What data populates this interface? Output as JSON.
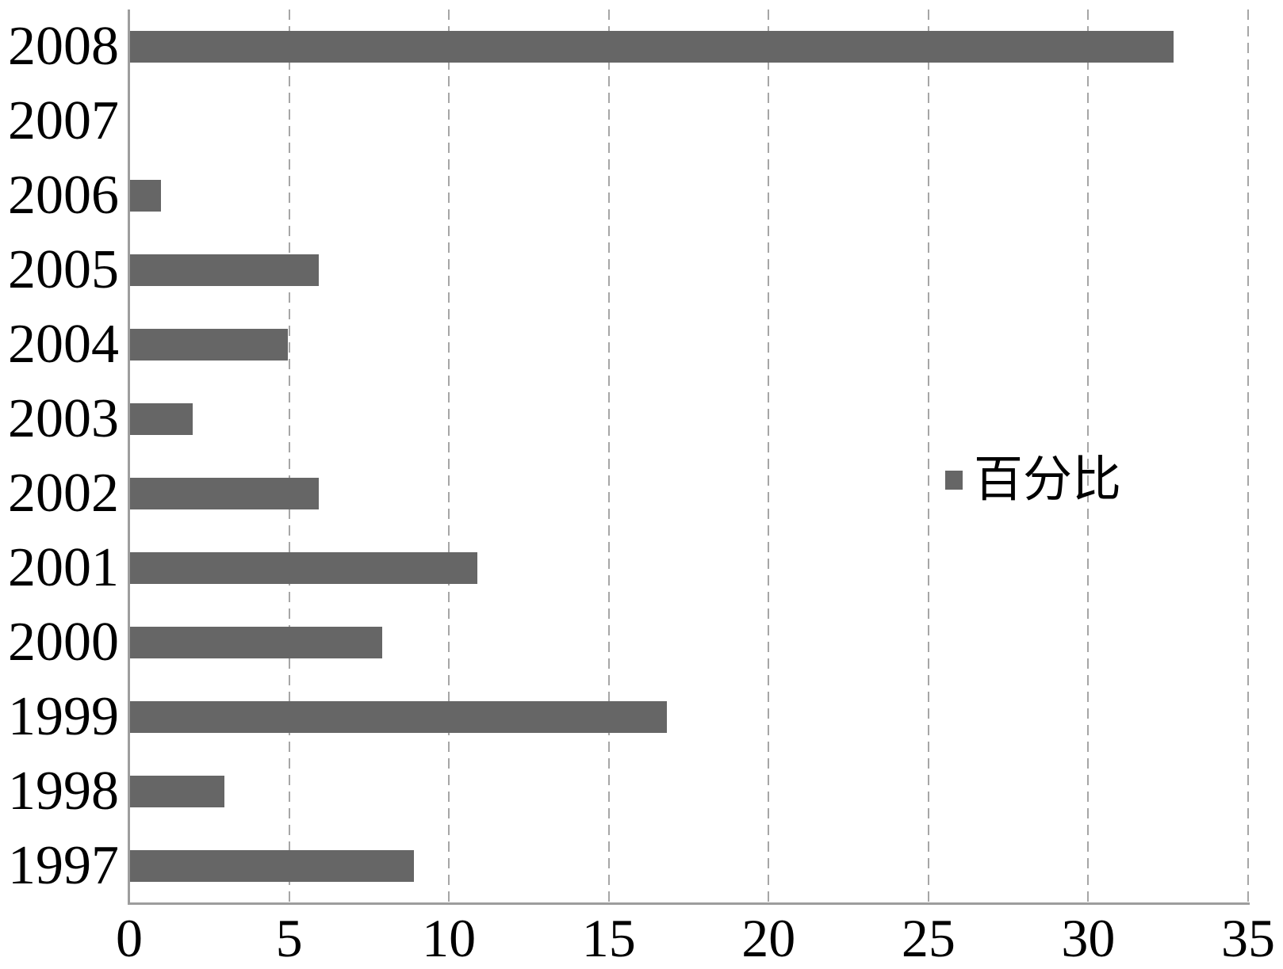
{
  "chart_data": {
    "type": "bar",
    "orientation": "horizontal",
    "title": "",
    "xlabel": "",
    "ylabel": "",
    "categories": [
      "2008",
      "2007",
      "2006",
      "2005",
      "2004",
      "2003",
      "2002",
      "2001",
      "2000",
      "1999",
      "1998",
      "1997"
    ],
    "series": [
      {
        "name": "百分比",
        "values": [
          32.67,
          0,
          0.99,
          5.94,
          4.95,
          1.98,
          5.94,
          10.89,
          7.92,
          16.83,
          2.97,
          8.91
        ]
      }
    ],
    "xlim": [
      0,
      35
    ],
    "xticks": [
      0,
      5,
      10,
      15,
      20,
      25,
      30,
      35
    ],
    "grid": "vertical-dashed",
    "legend_position": "center-right",
    "colors": {
      "bar": "#666666",
      "gridline": "#a6a6a6",
      "axis": "#9d9d9d",
      "text": "#000000"
    }
  },
  "legend": {
    "label": "百分比"
  }
}
